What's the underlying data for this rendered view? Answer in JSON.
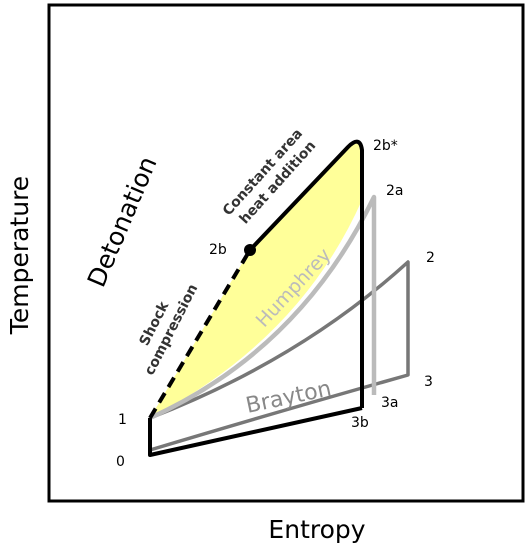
{
  "axes": {
    "x_label": "Entropy",
    "y_label": "Temperature"
  },
  "regions": {
    "detonation": "Detonation"
  },
  "processes": {
    "shock_line1": "Shock",
    "shock_line2": "compression",
    "heat_line1": "Constant area",
    "heat_line2": "heat addition"
  },
  "cycles": {
    "humphrey": "Humphrey",
    "brayton": "Brayton"
  },
  "state_points": {
    "p1": "1",
    "p0": "0",
    "p2b": "2b",
    "p2b_star": "2b*",
    "p2a": "2a",
    "p2": "2",
    "p3": "3",
    "p3a": "3a",
    "p3b": "3b"
  },
  "colors": {
    "detonation_fill": "#ffff99",
    "detonation_stroke": "#000000",
    "humphrey_stroke": "#bbbbbb",
    "brayton_stroke": "#777777",
    "frame": "#000000"
  }
}
